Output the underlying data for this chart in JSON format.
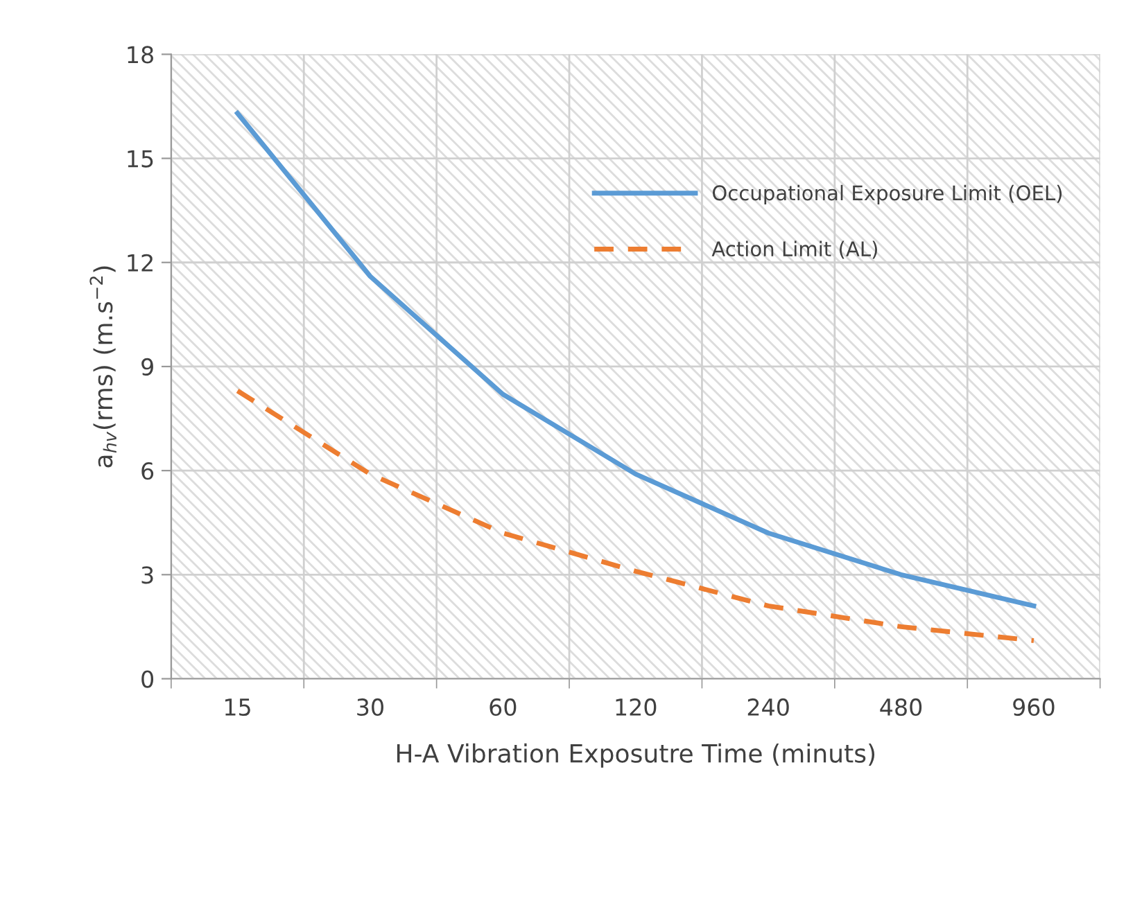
{
  "chart_data": {
    "type": "line",
    "xlabel": "H-A Vibration Exposutre Time (minuts)",
    "ylabel": "a$_{hv}$(rms) (m.s$^{−2}$)",
    "categories": [
      "15",
      "30",
      "60",
      "120",
      "240",
      "480",
      "960"
    ],
    "series": [
      {
        "name": "Occupational Exposure Limit (OEL)",
        "color": "#5b9bd5",
        "line_style": "solid",
        "values": [
          16.3,
          11.6,
          8.2,
          5.9,
          4.2,
          3.0,
          2.1
        ]
      },
      {
        "name": "Action Limit (AL)",
        "color": "#ed7d31",
        "line_style": "dashed",
        "values": [
          8.3,
          5.9,
          4.2,
          3.1,
          2.1,
          1.5,
          1.1
        ]
      }
    ],
    "ylim": [
      0,
      18
    ],
    "yticks": [
      0,
      3,
      6,
      9,
      12,
      15,
      18
    ],
    "grid": true,
    "legend": "top right",
    "marker": "none"
  }
}
